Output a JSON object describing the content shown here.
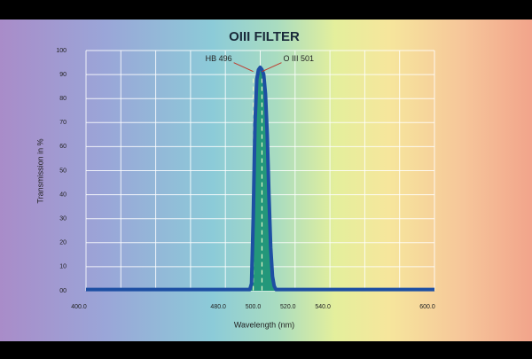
{
  "chart_data": {
    "type": "area",
    "title": "OIII FILTER",
    "x_label": "Wavelength (nm)",
    "y_label": "Transmission in %",
    "x": [
      400,
      480,
      490,
      494,
      495,
      496,
      497,
      498,
      499,
      500,
      501,
      502,
      503,
      504,
      505,
      506,
      507,
      508,
      509,
      520,
      600
    ],
    "series": [
      {
        "name": "OIII",
        "color": "#1d4fa3",
        "fill": "#23977a",
        "values": [
          0.5,
          0.5,
          0.5,
          0.5,
          3,
          30,
          70,
          88,
          92,
          93,
          92,
          90,
          82,
          65,
          40,
          18,
          6,
          2,
          0.5,
          0.5,
          0.5
        ]
      }
    ],
    "xlim": [
      400,
      600
    ],
    "xticks": [
      {
        "value": 400,
        "label": "400.0"
      },
      {
        "value": 480,
        "label": "480.0"
      },
      {
        "value": 500,
        "label": "500.0"
      },
      {
        "value": 520,
        "label": "520.0"
      },
      {
        "value": 540,
        "label": "540.0"
      },
      {
        "value": 600,
        "label": "600.0"
      }
    ],
    "xgrid": [
      400,
      420,
      440,
      460,
      480,
      500,
      520,
      540,
      560,
      580,
      600
    ],
    "ylim": [
      0,
      100
    ],
    "yticks": [
      {
        "value": 0,
        "label": "00"
      },
      10,
      20,
      30,
      40,
      50,
      60,
      70,
      80,
      90,
      100
    ],
    "grid": true,
    "annotations": [
      {
        "text": "HB 496",
        "x": 496,
        "y": 92,
        "side": "left"
      },
      {
        "text": "O III 501",
        "x": 501,
        "y": 92,
        "side": "right"
      }
    ]
  }
}
